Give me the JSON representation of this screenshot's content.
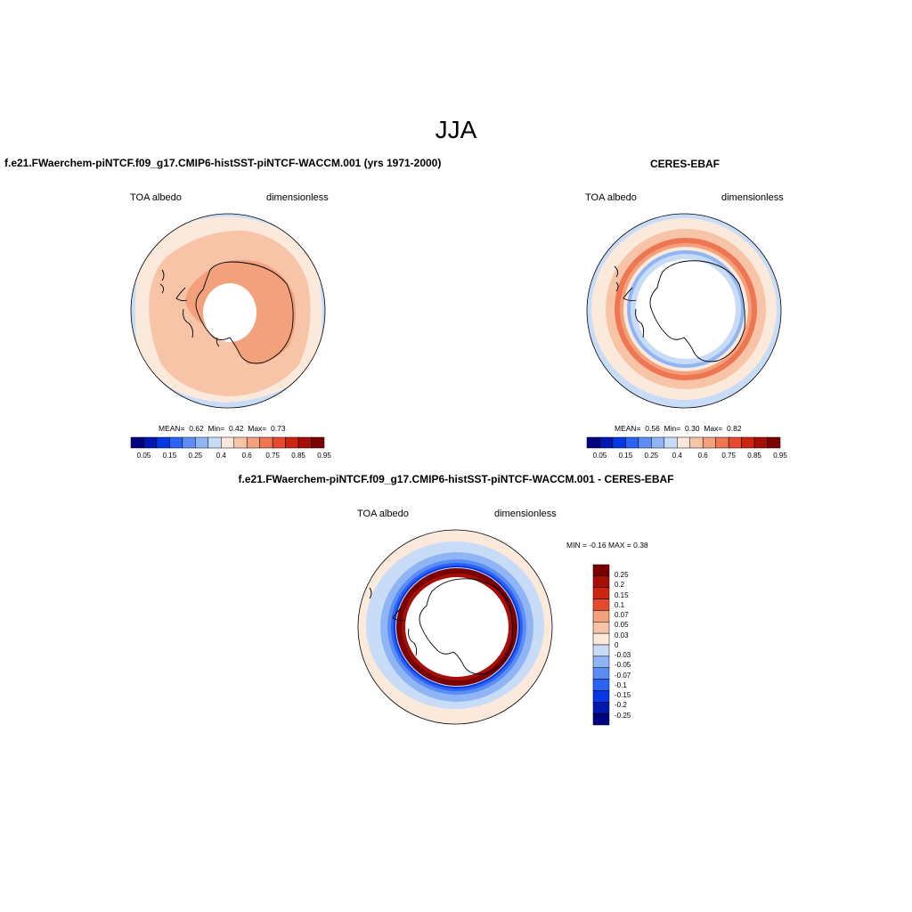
{
  "suptitle": "JJA",
  "panels": [
    {
      "title": "f.e21.FWaerchem-piNTCF.f09_g17.CMIP6-histSST-piNTCF-WACCM.001 (yrs 1971-2000)",
      "left_label": "TOA albedo",
      "right_label": "dimensionless",
      "stats": {
        "mean_label": "MEAN=",
        "mean": "0.62",
        "min_label": "Min=",
        "min": "0.42",
        "max_label": "Max=",
        "max": "0.73"
      }
    },
    {
      "title": "CERES-EBAF",
      "left_label": "TOA albedo",
      "right_label": "dimensionless",
      "stats": {
        "mean_label": "MEAN=",
        "mean": "0.56",
        "min_label": "Min=",
        "min": "0.30",
        "max_label": "Max=",
        "max": "0.82"
      }
    },
    {
      "title": "f.e21.FWaerchem-piNTCF.f09_g17.CMIP6-histSST-piNTCF-WACCM.001 - CERES-EBAF",
      "left_label": "TOA albedo",
      "right_label": "dimensionless",
      "stats_text": "MIN =  -0.16 MAX =   0.38"
    }
  ],
  "colorbar_horizontal": {
    "colors": [
      "#00007f",
      "#0018b0",
      "#0538e0",
      "#2a63f5",
      "#5b8df5",
      "#90b5f5",
      "#c8dcf8",
      "#fbe9dc",
      "#f7c4a8",
      "#f3a07c",
      "#ee7652",
      "#e64a2e",
      "#cc2611",
      "#a50f08",
      "#7a0000"
    ],
    "tick_labels": [
      "0.05",
      "0.15",
      "0.25",
      "0.4",
      "0.6",
      "0.75",
      "0.85",
      "0.95"
    ]
  },
  "colorbar_vertical": {
    "colors": [
      "#7a0000",
      "#a50f08",
      "#cc2611",
      "#e64a2e",
      "#f3a07c",
      "#f7c4a8",
      "#fbe9dc",
      "#c8dcf8",
      "#90b5f5",
      "#5b8df5",
      "#2a63f5",
      "#0538e0",
      "#0018b0",
      "#00007f"
    ],
    "tick_labels": [
      "0.25",
      "0.2",
      "0.15",
      "0.1",
      "0.07",
      "0.05",
      "0.03",
      "0",
      "-0.03",
      "-0.05",
      "-0.07",
      "-0.1",
      "-0.15",
      "-0.2",
      "-0.25"
    ]
  }
}
